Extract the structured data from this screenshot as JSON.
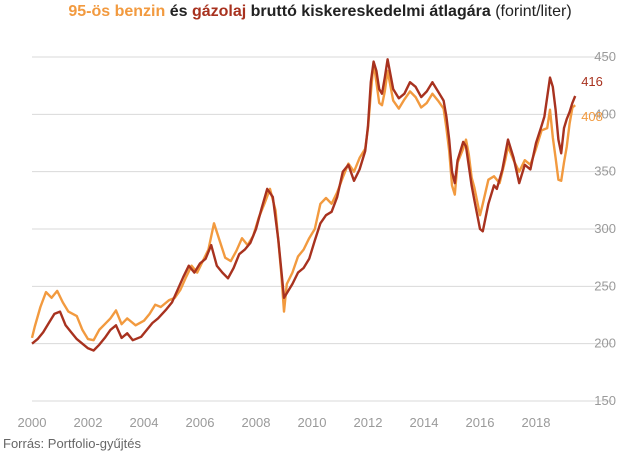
{
  "title": {
    "benzin": "95-ös benzin",
    "connector": "és",
    "gazolaj": "gázolaj",
    "rest": "bruttó kiskereskedelmi átlagára",
    "unit": "(forint/liter)"
  },
  "source": "Forrás: Portfolio-gyűjtés",
  "colors": {
    "benzin": "#f29a3f",
    "gazolaj": "#a8321f",
    "grid": "#d9d9d9",
    "tick": "#9a9a9a"
  },
  "chart_data": {
    "type": "line",
    "x_tick_labels": [
      "2000",
      "2002",
      "2004",
      "2006",
      "2008",
      "2010",
      "2012",
      "2014",
      "2016",
      "2018"
    ],
    "y_tick_labels": [
      "150",
      "200",
      "250",
      "300",
      "350",
      "400",
      "450"
    ],
    "xlim": [
      2000,
      2019.5
    ],
    "ylim": [
      150,
      450
    ],
    "grid": "horizontal",
    "y_axis_side": "right",
    "series": [
      {
        "name": "95-ös benzin",
        "color": "#f29a3f",
        "end_label": "408",
        "points": [
          [
            2000.0,
            205
          ],
          [
            2000.1,
            215
          ],
          [
            2000.3,
            232
          ],
          [
            2000.5,
            245
          ],
          [
            2000.7,
            240
          ],
          [
            2000.9,
            246
          ],
          [
            2001.1,
            236
          ],
          [
            2001.3,
            228
          ],
          [
            2001.6,
            224
          ],
          [
            2001.8,
            212
          ],
          [
            2002.0,
            204
          ],
          [
            2002.2,
            203
          ],
          [
            2002.4,
            212
          ],
          [
            2002.6,
            217
          ],
          [
            2002.8,
            222
          ],
          [
            2003.0,
            229
          ],
          [
            2003.2,
            217
          ],
          [
            2003.4,
            222
          ],
          [
            2003.7,
            216
          ],
          [
            2004.0,
            220
          ],
          [
            2004.2,
            226
          ],
          [
            2004.4,
            234
          ],
          [
            2004.6,
            232
          ],
          [
            2004.9,
            238
          ],
          [
            2005.1,
            240
          ],
          [
            2005.3,
            247
          ],
          [
            2005.5,
            258
          ],
          [
            2005.7,
            268
          ],
          [
            2005.9,
            262
          ],
          [
            2006.1,
            272
          ],
          [
            2006.3,
            282
          ],
          [
            2006.5,
            305
          ],
          [
            2006.7,
            290
          ],
          [
            2006.9,
            275
          ],
          [
            2007.1,
            272
          ],
          [
            2007.3,
            281
          ],
          [
            2007.5,
            292
          ],
          [
            2007.7,
            286
          ],
          [
            2007.9,
            294
          ],
          [
            2008.1,
            310
          ],
          [
            2008.3,
            322
          ],
          [
            2008.5,
            335
          ],
          [
            2008.7,
            316
          ],
          [
            2008.9,
            262
          ],
          [
            2009.0,
            228
          ],
          [
            2009.1,
            252
          ],
          [
            2009.3,
            262
          ],
          [
            2009.5,
            276
          ],
          [
            2009.7,
            282
          ],
          [
            2009.9,
            292
          ],
          [
            2010.1,
            300
          ],
          [
            2010.3,
            322
          ],
          [
            2010.5,
            327
          ],
          [
            2010.7,
            322
          ],
          [
            2010.9,
            332
          ],
          [
            2011.1,
            345
          ],
          [
            2011.3,
            357
          ],
          [
            2011.5,
            350
          ],
          [
            2011.7,
            362
          ],
          [
            2011.9,
            370
          ],
          [
            2012.0,
            388
          ],
          [
            2012.1,
            418
          ],
          [
            2012.2,
            445
          ],
          [
            2012.3,
            428
          ],
          [
            2012.4,
            410
          ],
          [
            2012.5,
            408
          ],
          [
            2012.6,
            420
          ],
          [
            2012.7,
            438
          ],
          [
            2012.8,
            425
          ],
          [
            2012.9,
            412
          ],
          [
            2013.1,
            405
          ],
          [
            2013.3,
            413
          ],
          [
            2013.5,
            420
          ],
          [
            2013.7,
            415
          ],
          [
            2013.9,
            406
          ],
          [
            2014.1,
            410
          ],
          [
            2014.3,
            418
          ],
          [
            2014.5,
            412
          ],
          [
            2014.7,
            405
          ],
          [
            2014.8,
            388
          ],
          [
            2014.9,
            368
          ],
          [
            2015.0,
            338
          ],
          [
            2015.1,
            330
          ],
          [
            2015.2,
            358
          ],
          [
            2015.4,
            370
          ],
          [
            2015.5,
            378
          ],
          [
            2015.6,
            365
          ],
          [
            2015.7,
            345
          ],
          [
            2015.8,
            336
          ],
          [
            2016.0,
            312
          ],
          [
            2016.1,
            322
          ],
          [
            2016.3,
            343
          ],
          [
            2016.5,
            346
          ],
          [
            2016.7,
            340
          ],
          [
            2016.9,
            360
          ],
          [
            2017.0,
            372
          ],
          [
            2017.2,
            360
          ],
          [
            2017.4,
            350
          ],
          [
            2017.6,
            360
          ],
          [
            2017.8,
            356
          ],
          [
            2018.0,
            370
          ],
          [
            2018.2,
            386
          ],
          [
            2018.4,
            388
          ],
          [
            2018.5,
            404
          ],
          [
            2018.6,
            380
          ],
          [
            2018.7,
            362
          ],
          [
            2018.8,
            343
          ],
          [
            2018.9,
            342
          ],
          [
            2019.0,
            358
          ],
          [
            2019.1,
            372
          ],
          [
            2019.2,
            392
          ],
          [
            2019.3,
            406
          ],
          [
            2019.4,
            408
          ]
        ]
      },
      {
        "name": "gázolaj",
        "color": "#a8321f",
        "end_label": "416",
        "points": [
          [
            2000.0,
            200
          ],
          [
            2000.2,
            204
          ],
          [
            2000.4,
            210
          ],
          [
            2000.6,
            218
          ],
          [
            2000.8,
            226
          ],
          [
            2001.0,
            228
          ],
          [
            2001.2,
            216
          ],
          [
            2001.4,
            210
          ],
          [
            2001.6,
            204
          ],
          [
            2001.8,
            200
          ],
          [
            2002.0,
            196
          ],
          [
            2002.2,
            194
          ],
          [
            2002.4,
            199
          ],
          [
            2002.6,
            205
          ],
          [
            2002.8,
            212
          ],
          [
            2003.0,
            216
          ],
          [
            2003.2,
            205
          ],
          [
            2003.4,
            209
          ],
          [
            2003.6,
            203
          ],
          [
            2003.9,
            206
          ],
          [
            2004.1,
            212
          ],
          [
            2004.3,
            218
          ],
          [
            2004.5,
            222
          ],
          [
            2004.8,
            230
          ],
          [
            2005.0,
            236
          ],
          [
            2005.2,
            247
          ],
          [
            2005.4,
            258
          ],
          [
            2005.6,
            268
          ],
          [
            2005.8,
            262
          ],
          [
            2006.0,
            270
          ],
          [
            2006.2,
            274
          ],
          [
            2006.4,
            286
          ],
          [
            2006.6,
            268
          ],
          [
            2006.8,
            262
          ],
          [
            2007.0,
            257
          ],
          [
            2007.2,
            266
          ],
          [
            2007.4,
            278
          ],
          [
            2007.6,
            282
          ],
          [
            2007.8,
            288
          ],
          [
            2008.0,
            300
          ],
          [
            2008.2,
            318
          ],
          [
            2008.4,
            335
          ],
          [
            2008.6,
            328
          ],
          [
            2008.8,
            290
          ],
          [
            2009.0,
            240
          ],
          [
            2009.1,
            244
          ],
          [
            2009.3,
            252
          ],
          [
            2009.5,
            262
          ],
          [
            2009.7,
            266
          ],
          [
            2009.9,
            274
          ],
          [
            2010.1,
            290
          ],
          [
            2010.3,
            305
          ],
          [
            2010.5,
            312
          ],
          [
            2010.7,
            315
          ],
          [
            2010.9,
            328
          ],
          [
            2011.1,
            350
          ],
          [
            2011.3,
            356
          ],
          [
            2011.5,
            342
          ],
          [
            2011.7,
            352
          ],
          [
            2011.9,
            368
          ],
          [
            2012.0,
            390
          ],
          [
            2012.1,
            428
          ],
          [
            2012.2,
            446
          ],
          [
            2012.3,
            438
          ],
          [
            2012.4,
            422
          ],
          [
            2012.5,
            418
          ],
          [
            2012.6,
            432
          ],
          [
            2012.7,
            448
          ],
          [
            2012.8,
            435
          ],
          [
            2012.9,
            422
          ],
          [
            2013.1,
            414
          ],
          [
            2013.3,
            418
          ],
          [
            2013.5,
            428
          ],
          [
            2013.7,
            424
          ],
          [
            2013.9,
            415
          ],
          [
            2014.1,
            420
          ],
          [
            2014.3,
            428
          ],
          [
            2014.5,
            420
          ],
          [
            2014.7,
            412
          ],
          [
            2014.8,
            398
          ],
          [
            2014.9,
            378
          ],
          [
            2015.0,
            350
          ],
          [
            2015.1,
            340
          ],
          [
            2015.2,
            360
          ],
          [
            2015.4,
            376
          ],
          [
            2015.5,
            372
          ],
          [
            2015.6,
            355
          ],
          [
            2015.7,
            338
          ],
          [
            2015.8,
            325
          ],
          [
            2016.0,
            300
          ],
          [
            2016.1,
            298
          ],
          [
            2016.3,
            322
          ],
          [
            2016.5,
            338
          ],
          [
            2016.6,
            335
          ],
          [
            2016.8,
            352
          ],
          [
            2017.0,
            378
          ],
          [
            2017.2,
            362
          ],
          [
            2017.4,
            340
          ],
          [
            2017.6,
            356
          ],
          [
            2017.8,
            352
          ],
          [
            2018.0,
            375
          ],
          [
            2018.2,
            390
          ],
          [
            2018.3,
            398
          ],
          [
            2018.5,
            432
          ],
          [
            2018.6,
            424
          ],
          [
            2018.7,
            404
          ],
          [
            2018.8,
            378
          ],
          [
            2018.9,
            366
          ],
          [
            2019.0,
            388
          ],
          [
            2019.1,
            396
          ],
          [
            2019.2,
            402
          ],
          [
            2019.3,
            410
          ],
          [
            2019.4,
            416
          ]
        ]
      }
    ]
  }
}
